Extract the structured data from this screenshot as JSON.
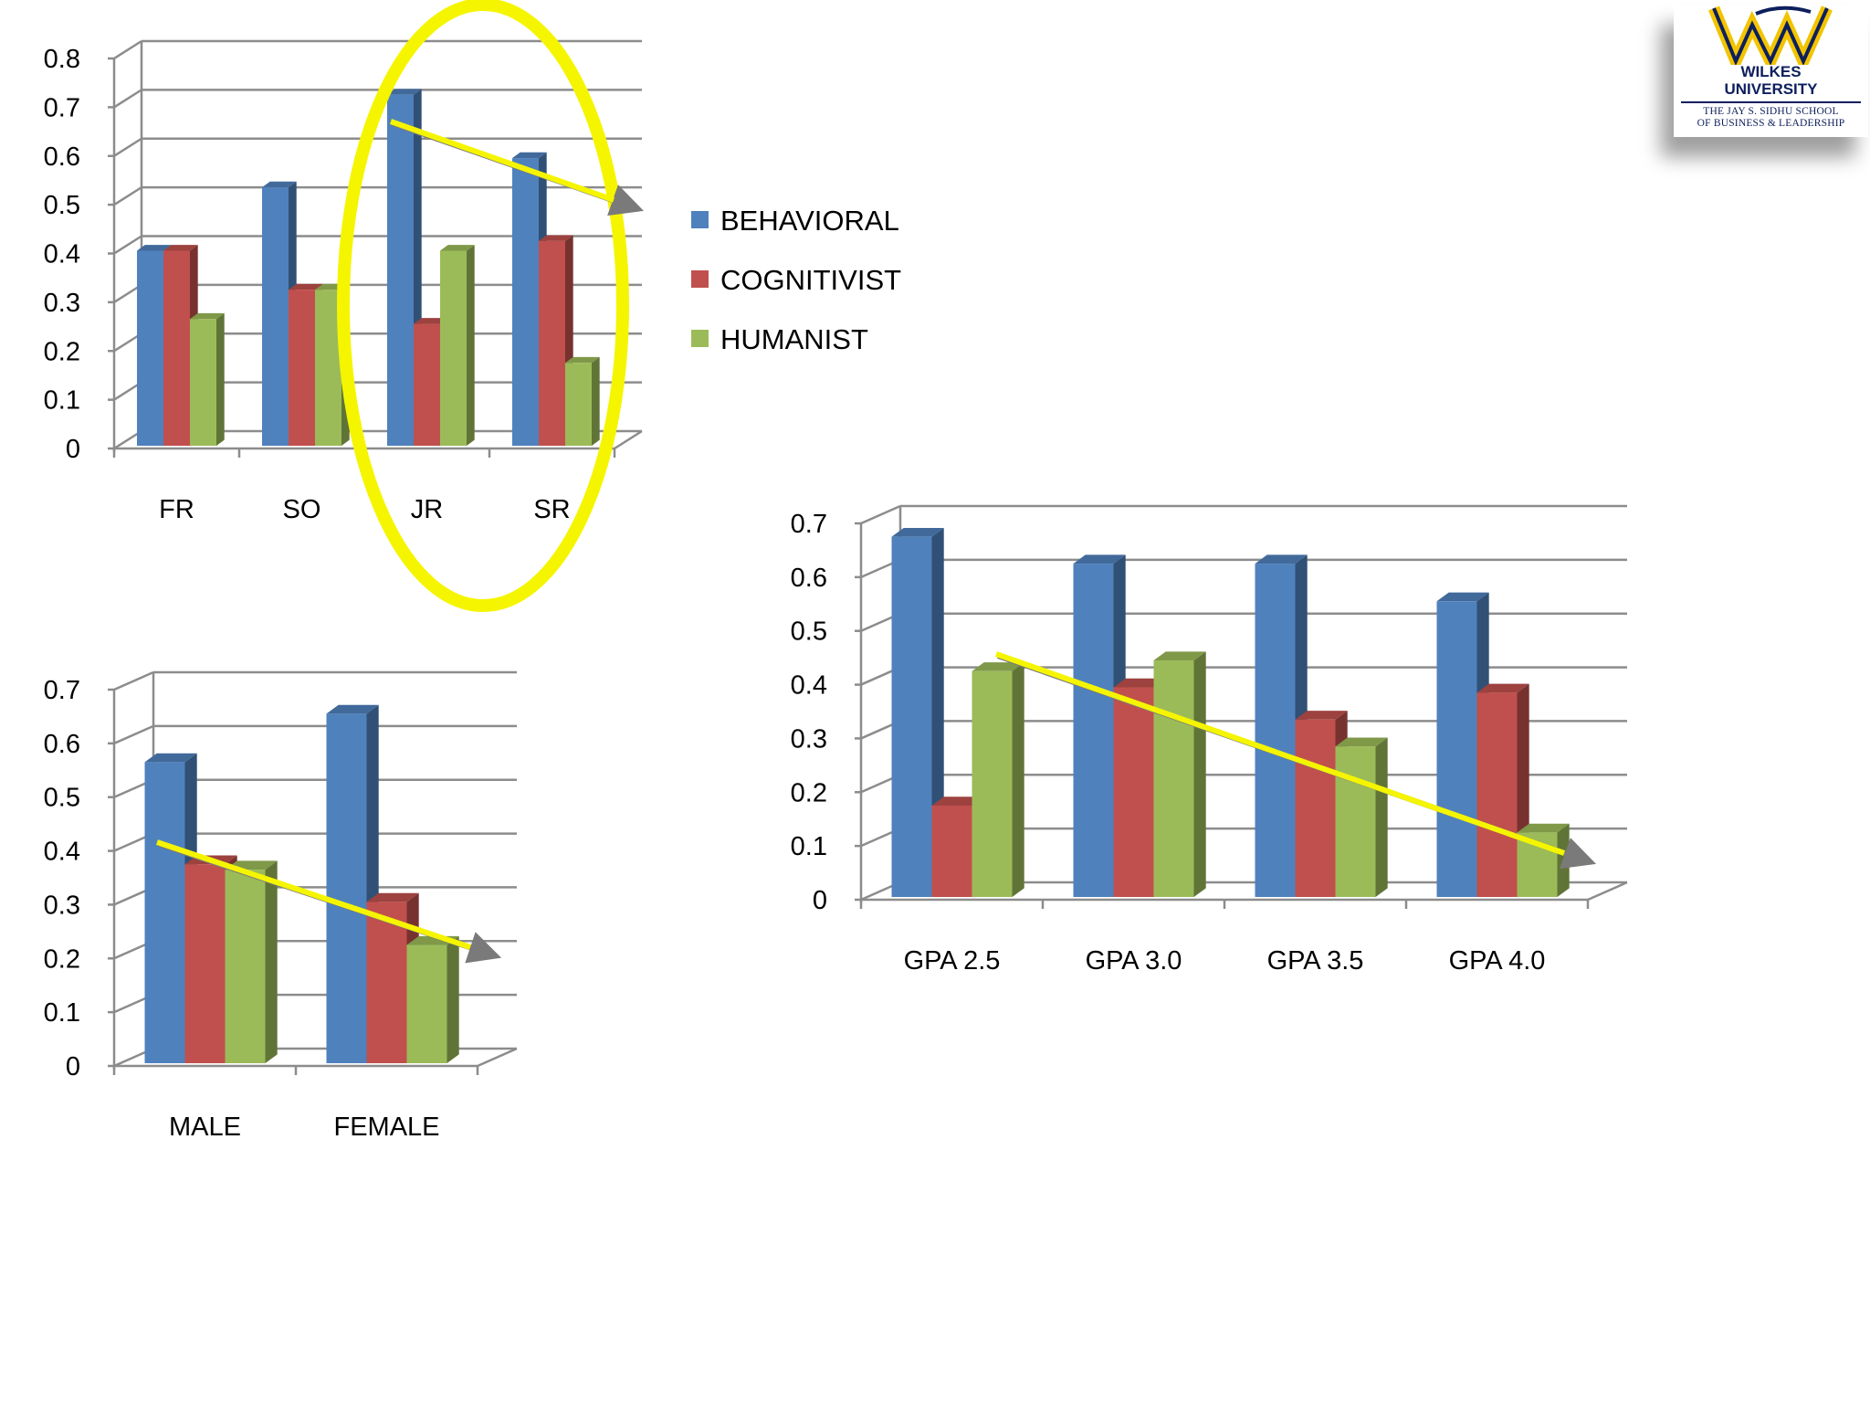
{
  "legend": {
    "items": [
      {
        "label": "BEHAVIORAL",
        "color": "#4f81bd"
      },
      {
        "label": "COGNITIVIST",
        "color": "#c0504d"
      },
      {
        "label": "HUMANIST",
        "color": "#9bbb59"
      }
    ]
  },
  "logo": {
    "name_line1": "WILKES",
    "name_line2": "UNIVERSITY",
    "school_line1": "THE JAY S. SIDHU SCHOOL",
    "school_line2": "OF BUSINESS & LEADERSHIP",
    "colors": {
      "navy": "#0d1f5c",
      "gold": "#f2c400"
    }
  },
  "annotations": {
    "highlight_color": "#f5f500",
    "highlight_circle_around": "JR, SR"
  },
  "chart_data": [
    {
      "type": "bar",
      "style": "3d-clustered-column",
      "categories": [
        "FR",
        "SO",
        "JR",
        "SR"
      ],
      "series": [
        {
          "name": "BEHAVIORAL",
          "values": [
            0.4,
            0.53,
            0.72,
            0.59
          ]
        },
        {
          "name": "COGNITIVIST",
          "values": [
            0.4,
            0.32,
            0.25,
            0.42
          ]
        },
        {
          "name": "HUMANIST",
          "values": [
            0.26,
            0.32,
            0.4,
            0.17
          ]
        }
      ],
      "ylim": [
        0,
        0.8
      ],
      "yticks": [
        "0",
        "0.1",
        "0.2",
        "0.3",
        "0.4",
        "0.5",
        "0.6",
        "0.7",
        "0.8"
      ],
      "grid": true,
      "legend": "right"
    },
    {
      "type": "bar",
      "style": "3d-clustered-column",
      "categories": [
        "MALE",
        "FEMALE"
      ],
      "series": [
        {
          "name": "BEHAVIORAL",
          "values": [
            0.56,
            0.65
          ]
        },
        {
          "name": "COGNITIVIST",
          "values": [
            0.37,
            0.3
          ]
        },
        {
          "name": "HUMANIST",
          "values": [
            0.36,
            0.22
          ]
        }
      ],
      "ylim": [
        0,
        0.7
      ],
      "yticks": [
        "0",
        "0.1",
        "0.2",
        "0.3",
        "0.4",
        "0.5",
        "0.6",
        "0.7"
      ],
      "grid": true
    },
    {
      "type": "bar",
      "style": "3d-clustered-column",
      "categories": [
        "GPA 2.5",
        "GPA 3.0",
        "GPA 3.5",
        "GPA 4.0"
      ],
      "series": [
        {
          "name": "BEHAVIORAL",
          "values": [
            0.67,
            0.62,
            0.62,
            0.55
          ]
        },
        {
          "name": "COGNITIVIST",
          "values": [
            0.17,
            0.39,
            0.33,
            0.38
          ]
        },
        {
          "name": "HUMANIST",
          "values": [
            0.42,
            0.44,
            0.28,
            0.12
          ]
        }
      ],
      "ylim": [
        0,
        0.7
      ],
      "yticks": [
        "0",
        "0.1",
        "0.2",
        "0.3",
        "0.4",
        "0.5",
        "0.6",
        "0.7"
      ],
      "grid": true
    }
  ]
}
